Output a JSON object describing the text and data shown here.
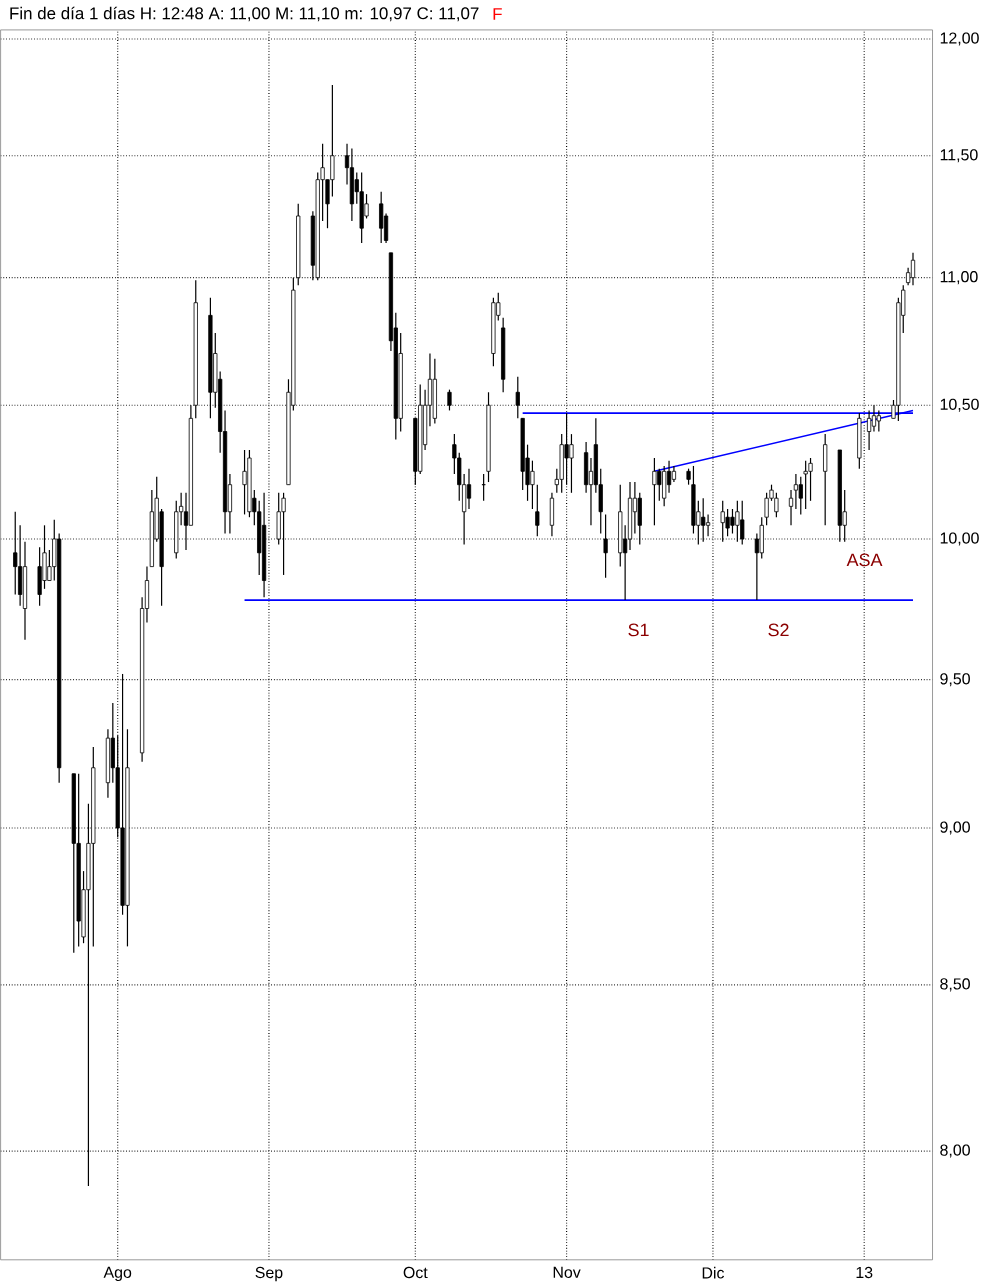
{
  "chart_data": {
    "type": "candlestick",
    "title": "Fin de día 1 días H: 12:48 A: 11,00 M: 11,10 m: 10,97 C: 11,07",
    "color": "#000000",
    "x": [
      "2012-07-11",
      "2012-07-12",
      "2012-07-13",
      "2012-07-16",
      "2012-07-17",
      "2012-07-18",
      "2012-07-19",
      "2012-07-20",
      "2012-07-23",
      "2012-07-24",
      "2012-07-25",
      "2012-07-26",
      "2012-07-27",
      "2012-07-30",
      "2012-07-31",
      "2012-08-01",
      "2012-08-02",
      "2012-08-03",
      "2012-08-06",
      "2012-08-07",
      "2012-08-08",
      "2012-08-09",
      "2012-08-10",
      "2012-08-13",
      "2012-08-14",
      "2012-08-15",
      "2012-08-16",
      "2012-08-17",
      "2012-08-20",
      "2012-08-21",
      "2012-08-22",
      "2012-08-23",
      "2012-08-24",
      "2012-08-27",
      "2012-08-28",
      "2012-08-29",
      "2012-08-30",
      "2012-08-31",
      "2012-09-03",
      "2012-09-04",
      "2012-09-05",
      "2012-09-06",
      "2012-09-07",
      "2012-09-10",
      "2012-09-11",
      "2012-09-12",
      "2012-09-13",
      "2012-09-14",
      "2012-09-17",
      "2012-09-18",
      "2012-09-19",
      "2012-09-20",
      "2012-09-21",
      "2012-09-24",
      "2012-09-25",
      "2012-09-26",
      "2012-09-27",
      "2012-09-28",
      "2012-10-01",
      "2012-10-02",
      "2012-10-03",
      "2012-10-04",
      "2012-10-05",
      "2012-10-08",
      "2012-10-09",
      "2012-10-10",
      "2012-10-11",
      "2012-10-12",
      "2012-10-15",
      "2012-10-16",
      "2012-10-17",
      "2012-10-18",
      "2012-10-19",
      "2012-10-22",
      "2012-10-23",
      "2012-10-24",
      "2012-10-25",
      "2012-10-26",
      "2012-10-29",
      "2012-10-30",
      "2012-10-31",
      "2012-11-01",
      "2012-11-02",
      "2012-11-05",
      "2012-11-06",
      "2012-11-07",
      "2012-11-08",
      "2012-11-09",
      "2012-11-12",
      "2012-11-13",
      "2012-11-14",
      "2012-11-15",
      "2012-11-16",
      "2012-11-19",
      "2012-11-20",
      "2012-11-21",
      "2012-11-22",
      "2012-11-23",
      "2012-11-26",
      "2012-11-27",
      "2012-11-28",
      "2012-11-29",
      "2012-11-30",
      "2012-12-03",
      "2012-12-04",
      "2012-12-05",
      "2012-12-06",
      "2012-12-07",
      "2012-12-10",
      "2012-12-11",
      "2012-12-12",
      "2012-12-13",
      "2012-12-14",
      "2012-12-17",
      "2012-12-18",
      "2012-12-19",
      "2012-12-20",
      "2012-12-21",
      "2012-12-24",
      "2012-12-27",
      "2012-12-28",
      "2012-12-31",
      "2013-01-02",
      "2013-01-03",
      "2013-01-04",
      "2013-01-07",
      "2013-01-08",
      "2013-01-09",
      "2013-01-10",
      "2013-01-11"
    ],
    "ohlc": [
      [
        9.95,
        10.1,
        9.8,
        9.9
      ],
      [
        9.9,
        10.05,
        9.76,
        9.8
      ],
      [
        9.75,
        9.99,
        9.64,
        9.9
      ],
      [
        9.9,
        9.97,
        9.76,
        9.8
      ],
      [
        9.85,
        10.05,
        9.82,
        9.95
      ],
      [
        9.85,
        9.96,
        9.85,
        9.9
      ],
      [
        9.9,
        10.07,
        9.85,
        10.0
      ],
      [
        10.0,
        10.02,
        9.15,
        9.2
      ],
      [
        9.18,
        9.18,
        8.6,
        8.95
      ],
      [
        8.95,
        9.18,
        8.62,
        8.7
      ],
      [
        8.65,
        8.86,
        8.63,
        8.8
      ],
      [
        8.8,
        9.08,
        7.9,
        8.95
      ],
      [
        8.95,
        9.27,
        8.62,
        9.2
      ],
      [
        9.15,
        9.33,
        9.1,
        9.3
      ],
      [
        9.3,
        9.42,
        9.15,
        9.2
      ],
      [
        9.2,
        9.31,
        8.97,
        9.0
      ],
      [
        9.0,
        9.52,
        8.72,
        8.75
      ],
      [
        8.75,
        9.33,
        8.62,
        9.2
      ],
      [
        9.25,
        9.79,
        9.22,
        9.75
      ],
      [
        9.75,
        9.9,
        9.7,
        9.85
      ],
      [
        9.9,
        10.18,
        9.9,
        10.1
      ],
      [
        10.0,
        10.23,
        9.99,
        10.15
      ],
      [
        10.1,
        10.11,
        9.76,
        9.9
      ],
      [
        9.95,
        10.14,
        9.93,
        10.1
      ],
      [
        10.1,
        10.17,
        10.05,
        10.12
      ],
      [
        10.1,
        10.17,
        9.96,
        10.05
      ],
      [
        10.05,
        10.5,
        10.05,
        10.45
      ],
      [
        10.5,
        10.99,
        10.45,
        10.9
      ],
      [
        10.85,
        10.92,
        10.45,
        10.55
      ],
      [
        10.55,
        10.78,
        10.49,
        10.7
      ],
      [
        10.6,
        10.63,
        10.32,
        10.4
      ],
      [
        10.4,
        10.48,
        10.02,
        10.1
      ],
      [
        10.1,
        10.24,
        10.02,
        10.2
      ],
      [
        10.2,
        10.33,
        10.09,
        10.25
      ],
      [
        10.1,
        10.33,
        10.08,
        10.3
      ],
      [
        10.15,
        10.18,
        10.05,
        10.1
      ],
      [
        10.1,
        10.14,
        9.87,
        9.95
      ],
      [
        10.05,
        10.17,
        9.79,
        9.85
      ],
      [
        10.0,
        10.17,
        9.98,
        10.1
      ],
      [
        10.1,
        10.17,
        9.87,
        10.15
      ],
      [
        10.2,
        10.6,
        10.2,
        10.55
      ],
      [
        10.5,
        11.0,
        10.48,
        10.95
      ],
      [
        11.0,
        11.3,
        10.97,
        11.25
      ],
      [
        11.25,
        11.27,
        10.99,
        11.05
      ],
      [
        11.0,
        11.43,
        10.99,
        11.4
      ],
      [
        11.4,
        11.55,
        11.23,
        11.45
      ],
      [
        11.4,
        11.4,
        11.2,
        11.3
      ],
      [
        11.4,
        11.8,
        11.33,
        11.5
      ],
      [
        11.5,
        11.55,
        11.38,
        11.45
      ],
      [
        11.45,
        11.53,
        11.23,
        11.3
      ],
      [
        11.4,
        11.43,
        11.3,
        11.35
      ],
      [
        11.35,
        11.43,
        11.14,
        11.2
      ],
      [
        11.25,
        11.34,
        11.24,
        11.3
      ],
      [
        11.3,
        11.35,
        11.14,
        11.2
      ],
      [
        11.25,
        11.26,
        11.14,
        11.15
      ],
      [
        11.1,
        11.1,
        10.71,
        10.75
      ],
      [
        10.8,
        10.86,
        10.37,
        10.45
      ],
      [
        10.45,
        10.78,
        10.4,
        10.7
      ],
      [
        10.45,
        10.45,
        10.2,
        10.25
      ],
      [
        10.25,
        10.58,
        10.24,
        10.5
      ],
      [
        10.35,
        10.56,
        10.33,
        10.5
      ],
      [
        10.5,
        10.7,
        10.42,
        10.6
      ],
      [
        10.45,
        10.68,
        10.43,
        10.6
      ],
      [
        10.55,
        10.56,
        10.48,
        10.5
      ],
      [
        10.35,
        10.39,
        10.24,
        10.3
      ],
      [
        10.3,
        10.32,
        10.14,
        10.2
      ],
      [
        10.1,
        10.24,
        9.98,
        10.2
      ],
      [
        10.2,
        10.26,
        10.11,
        10.15
      ],
      [
        10.2,
        10.24,
        10.14,
        10.2
      ],
      [
        10.25,
        10.55,
        10.21,
        10.5
      ],
      [
        10.7,
        10.92,
        10.65,
        10.9
      ],
      [
        10.85,
        10.94,
        10.83,
        10.9
      ],
      [
        10.8,
        10.84,
        10.55,
        10.6
      ],
      [
        10.55,
        10.61,
        10.45,
        10.5
      ],
      [
        10.45,
        10.45,
        10.18,
        10.25
      ],
      [
        10.3,
        10.35,
        10.14,
        10.2
      ],
      [
        10.2,
        10.29,
        10.11,
        10.25
      ],
      [
        10.1,
        10.2,
        10.01,
        10.05
      ],
      [
        10.05,
        10.17,
        10.01,
        10.15
      ],
      [
        10.2,
        10.26,
        10.17,
        10.22
      ],
      [
        10.22,
        10.39,
        10.17,
        10.35
      ],
      [
        10.35,
        10.47,
        10.2,
        10.3
      ],
      [
        10.3,
        10.39,
        10.17,
        10.35
      ],
      [
        10.32,
        10.36,
        10.17,
        10.2
      ],
      [
        10.2,
        10.3,
        10.05,
        10.25
      ],
      [
        10.35,
        10.45,
        10.17,
        10.2
      ],
      [
        10.2,
        10.26,
        10.02,
        10.1
      ],
      [
        10.0,
        10.09,
        9.86,
        9.95
      ],
      [
        9.95,
        10.2,
        9.9,
        10.1
      ],
      [
        10.0,
        10.05,
        9.78,
        9.95
      ],
      [
        10.0,
        10.21,
        9.96,
        10.15
      ],
      [
        10.1,
        10.21,
        10.02,
        10.15
      ],
      [
        10.15,
        10.17,
        9.98,
        10.05
      ],
      [
        10.2,
        10.3,
        10.05,
        10.25
      ],
      [
        10.25,
        10.26,
        10.14,
        10.2
      ],
      [
        10.15,
        10.27,
        10.12,
        10.25
      ],
      [
        10.25,
        10.29,
        10.17,
        10.2
      ],
      [
        10.22,
        10.27,
        10.21,
        10.25
      ],
      [
        10.25,
        10.26,
        10.2,
        10.22
      ],
      [
        10.2,
        10.27,
        10.02,
        10.05
      ],
      [
        10.05,
        10.14,
        9.98,
        10.1
      ],
      [
        10.08,
        10.15,
        9.99,
        10.05
      ],
      [
        10.05,
        10.09,
        10.01,
        10.06
      ],
      [
        10.06,
        10.14,
        9.99,
        10.1
      ],
      [
        10.08,
        10.11,
        10.01,
        10.04
      ],
      [
        10.08,
        10.11,
        10.02,
        10.05
      ],
      [
        10.05,
        10.14,
        9.99,
        10.1
      ],
      [
        10.07,
        10.14,
        9.98,
        10.0
      ],
      [
        10.0,
        10.02,
        9.78,
        9.95
      ],
      [
        9.95,
        10.08,
        9.93,
        10.05
      ],
      [
        10.08,
        10.17,
        10.05,
        10.15
      ],
      [
        10.15,
        10.2,
        10.14,
        10.18
      ],
      [
        10.1,
        10.17,
        10.08,
        10.15
      ],
      [
        10.12,
        10.18,
        10.05,
        10.15
      ],
      [
        10.18,
        10.24,
        10.11,
        10.2
      ],
      [
        10.2,
        10.23,
        10.09,
        10.15
      ],
      [
        10.24,
        10.29,
        10.11,
        10.25
      ],
      [
        10.25,
        10.3,
        10.14,
        10.28
      ],
      [
        10.25,
        10.39,
        10.05,
        10.35
      ],
      [
        10.33,
        10.33,
        9.99,
        10.05
      ],
      [
        10.05,
        10.18,
        9.99,
        10.1
      ],
      [
        10.3,
        10.47,
        10.26,
        10.45
      ],
      [
        10.4,
        10.48,
        10.33,
        10.45
      ],
      [
        10.42,
        10.5,
        10.4,
        10.46
      ],
      [
        10.44,
        10.48,
        10.4,
        10.46
      ],
      [
        10.45,
        10.52,
        10.45,
        10.5
      ],
      [
        10.5,
        10.92,
        10.44,
        10.9
      ],
      [
        10.85,
        10.97,
        10.78,
        10.95
      ],
      [
        10.98,
        11.04,
        10.97,
        11.02
      ],
      [
        11.0,
        11.1,
        10.97,
        11.07
      ]
    ],
    "series": [
      {
        "type": "line",
        "color": "#0000ff",
        "x": [
          "2012-08-27",
          "2013-01-11"
        ],
        "values": [
          9.78,
          9.78
        ]
      },
      {
        "type": "line",
        "color": "#0000ff",
        "x": [
          "2012-10-23",
          "2013-01-11"
        ],
        "values": [
          10.47,
          10.47
        ]
      },
      {
        "type": "line",
        "color": "#0000ff",
        "x": [
          "2012-11-19",
          "2013-01-11"
        ],
        "values": [
          10.25,
          10.48
        ]
      }
    ],
    "annotations": [
      "S1",
      "S2",
      "ASA",
      "F"
    ],
    "log": "y",
    "grid": true,
    "line_style": "solid",
    "xlim": [
      "2012-07-08",
      "2013-01-15"
    ],
    "ylim": [
      7.69,
      12.04
    ],
    "xticks": [
      {
        "value": "2012-08-01",
        "label": "Ago"
      },
      {
        "value": "2012-09-01",
        "label": "Sep"
      },
      {
        "value": "2012-10-01",
        "label": "Oct"
      },
      {
        "value": "2012-11-01",
        "label": "Nov"
      },
      {
        "value": "2012-12-01",
        "label": "Dic"
      },
      {
        "value": "2013-01-01",
        "label": "13"
      }
    ],
    "yticks": [
      {
        "value": 8,
        "label": "8,00"
      },
      {
        "value": 8.5,
        "label": "8,50"
      },
      {
        "value": 9,
        "label": "9,00"
      },
      {
        "value": 9.5,
        "label": "9,50"
      },
      {
        "value": 10,
        "label": "10,00"
      },
      {
        "value": 10.5,
        "label": "10,50"
      },
      {
        "value": 11,
        "label": "11,00"
      },
      {
        "value": 11.5,
        "label": "11,50"
      },
      {
        "value": 12,
        "label": "12,00"
      }
    ]
  }
}
